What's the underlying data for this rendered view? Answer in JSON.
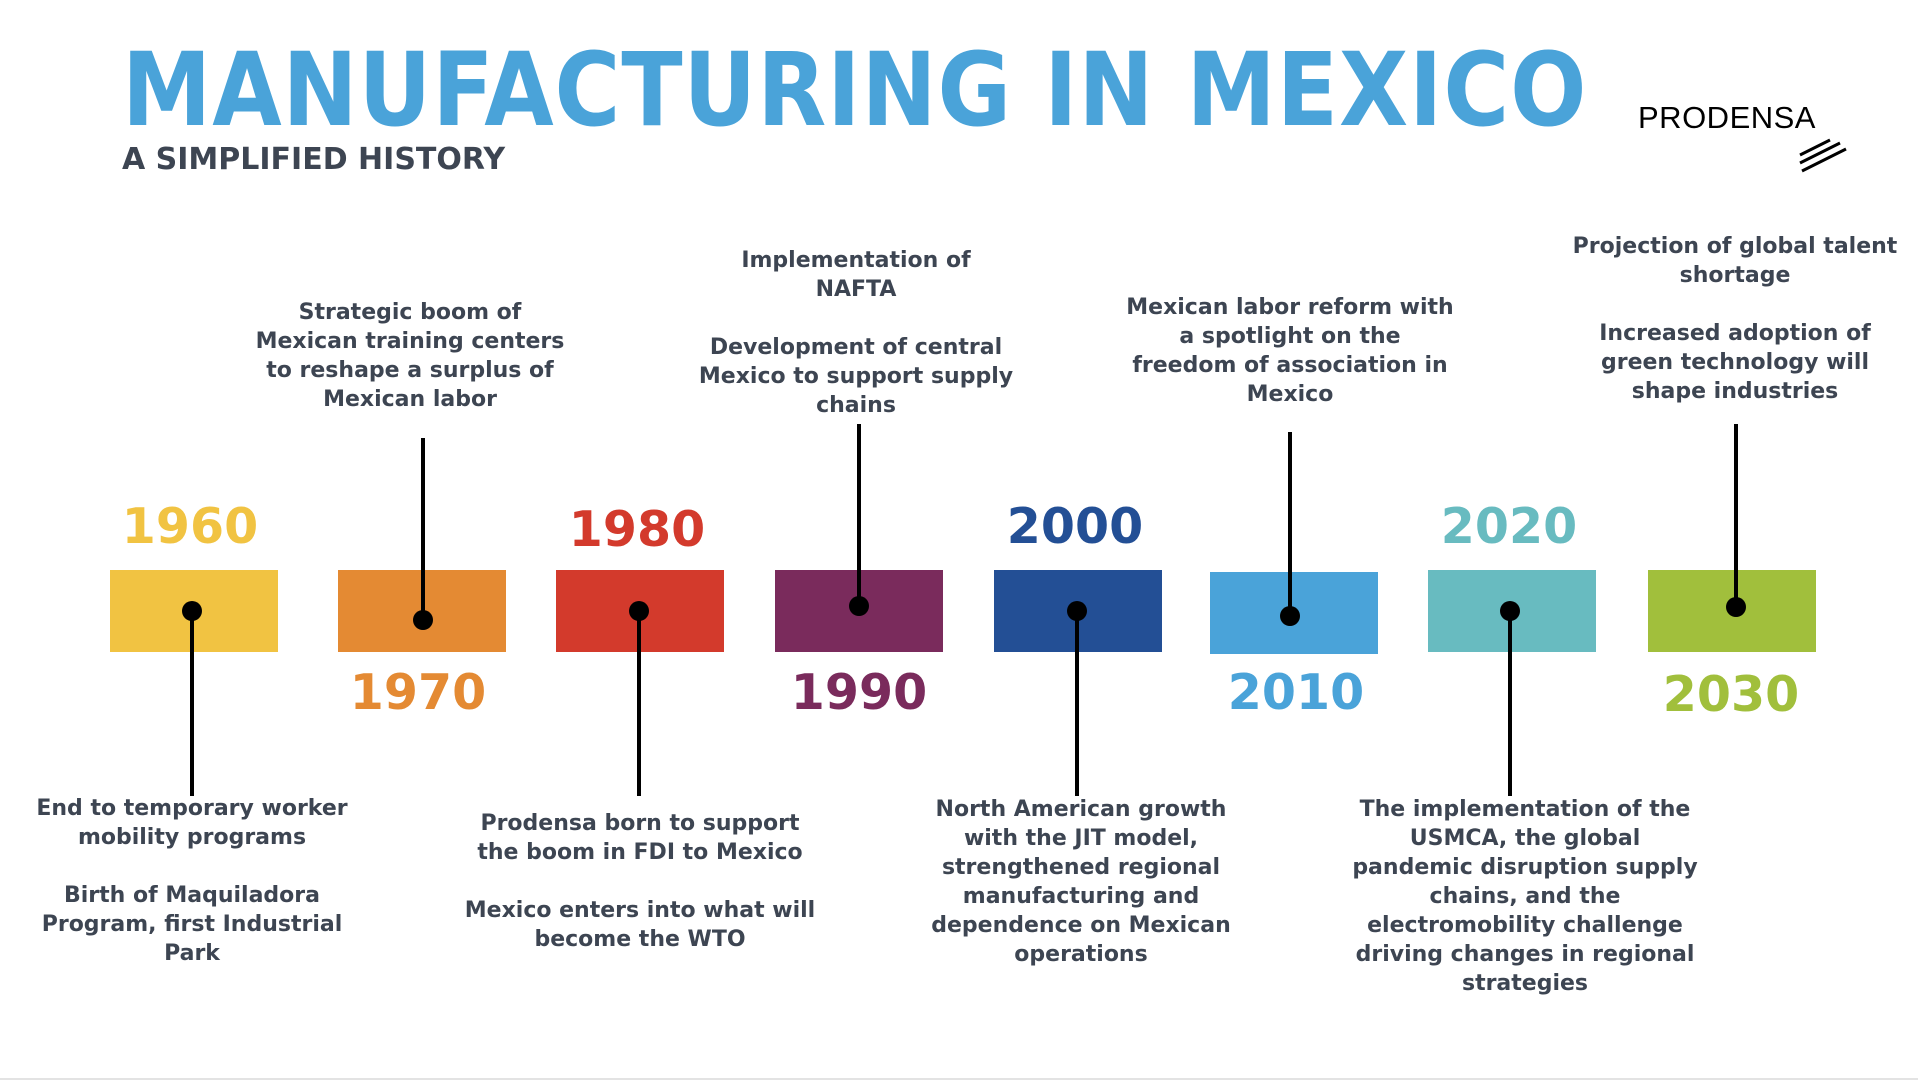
{
  "header": {
    "title": "MANUFACTURING IN MEXICO",
    "subtitle": "A SIMPLIFIED HISTORY",
    "logo_text": "PRODENSA"
  },
  "colors": {
    "title": "#4aa3d9",
    "subtitle": "#3d4552",
    "caption": "#3d4552"
  },
  "timeline": {
    "items": [
      {
        "year": "1960",
        "color": "#f1c342",
        "text_position": "below",
        "description": "End to temporary worker\nmobility programs\n\nBirth of Maquiladora\nProgram, first Industrial\nPark"
      },
      {
        "year": "1970",
        "color": "#e48a33",
        "text_position": "above",
        "description": "Strategic boom of\nMexican training centers\nto reshape a surplus of\nMexican labor"
      },
      {
        "year": "1980",
        "color": "#d33a2c",
        "text_position": "below",
        "description": "Prodensa born to support\nthe boom in FDI to Mexico\n\nMexico enters into what will\nbecome the WTO"
      },
      {
        "year": "1990",
        "color": "#7a2b5c",
        "text_position": "above",
        "description": "Implementation of\nNAFTA\n\nDevelopment of central\nMexico to support supply\nchains"
      },
      {
        "year": "2000",
        "color": "#234f95",
        "text_position": "below",
        "description": "North American growth\nwith the JIT model,\nstrengthened regional\nmanufacturing and\ndependence on Mexican\noperations"
      },
      {
        "year": "2010",
        "color": "#4aa3d9",
        "text_position": "above",
        "description": "Mexican labor reform with\na spotlight on the\nfreedom of association in\nMexico"
      },
      {
        "year": "2020",
        "color": "#68bbc0",
        "text_position": "below",
        "description": "The implementation of the\nUSMCA, the global\npandemic disruption supply\nchains, and the\nelectromobility challenge\ndriving changes in regional\nstrategies"
      },
      {
        "year": "2030",
        "color": "#a1bf3c",
        "text_position": "above",
        "description": "Projection of global talent\nshortage\n\nIncreased adoption of\ngreen technology will\nshape industries"
      }
    ]
  }
}
